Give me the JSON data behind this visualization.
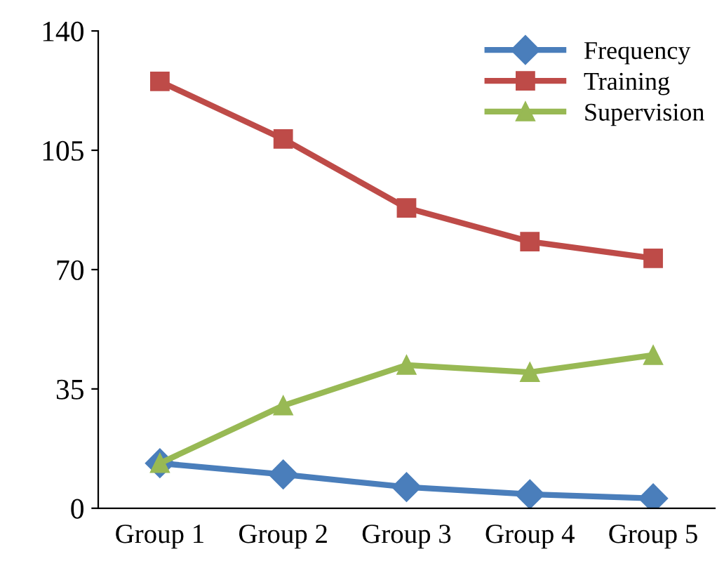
{
  "chart_data": {
    "type": "line",
    "categories": [
      "Group 1",
      "Group 2",
      "Group 3",
      "Group 4",
      "Group 5"
    ],
    "series": [
      {
        "name": "Frequency",
        "color": "#4a7ebb",
        "values": [
          13.2,
          9.9,
          6.2,
          4.1,
          2.9
        ],
        "marker": "diamond"
      },
      {
        "name": "Training",
        "color": "#be4b48",
        "values": [
          125.2,
          108.3,
          88.1,
          78.2,
          73.3
        ],
        "marker": "square"
      },
      {
        "name": "Supervision",
        "color": "#98b954",
        "values": [
          13.2,
          30.1,
          42,
          39.9,
          44.9
        ],
        "marker": "triangle"
      }
    ],
    "ylim": [
      0,
      140
    ],
    "yticks": [
      0,
      35,
      70,
      105,
      140
    ],
    "grid": false,
    "legend": "top right",
    "line_style": "solid"
  }
}
